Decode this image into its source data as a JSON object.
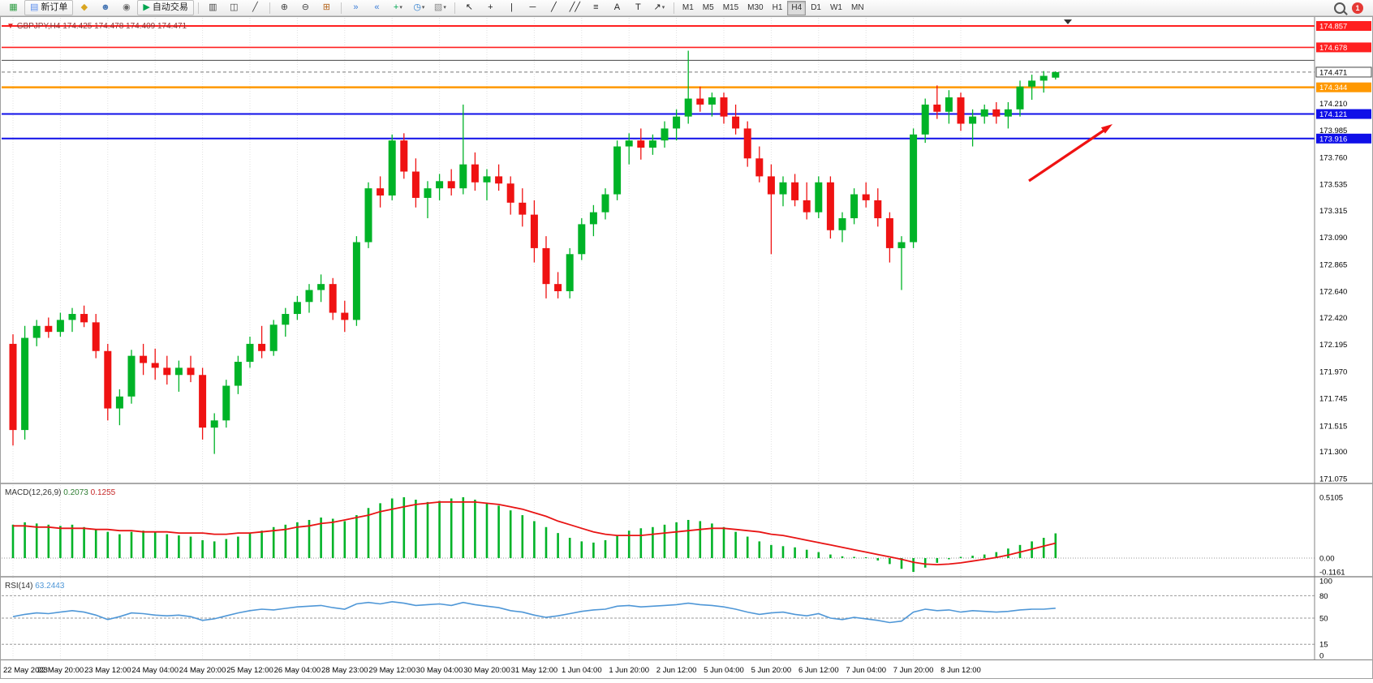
{
  "toolbar": {
    "notification_count": "1",
    "items": [
      {
        "type": "icon",
        "name": "new-chart-icon",
        "glyph": "▦",
        "color": "#2f9e44"
      },
      {
        "type": "button",
        "name": "new-order-button",
        "glyph": "▤",
        "color": "#5b8def",
        "label": "新订单"
      },
      {
        "type": "icon",
        "name": "styler-icon",
        "glyph": "◆",
        "color": "#d9a520"
      },
      {
        "type": "icon",
        "name": "profile-icon",
        "glyph": "☻",
        "color": "#4a78b5"
      },
      {
        "type": "icon",
        "name": "market-icon",
        "glyph": "◉",
        "color": "#6a6a6a"
      },
      {
        "type": "button",
        "name": "auto-trading-button",
        "glyph": "▶",
        "color": "#00a650",
        "label": "自动交易"
      },
      {
        "type": "sep"
      },
      {
        "type": "icon",
        "name": "bar-chart-icon",
        "glyph": "▥",
        "color": "#444444"
      },
      {
        "type": "icon",
        "name": "candlestick-chart-icon",
        "glyph": "◫",
        "color": "#444444"
      },
      {
        "type": "icon",
        "name": "line-chart-icon",
        "glyph": "╱",
        "color": "#444444"
      },
      {
        "type": "sep"
      },
      {
        "type": "icon",
        "name": "zoom-in-icon",
        "glyph": "⊕",
        "color": "#444444"
      },
      {
        "type": "icon",
        "name": "zoom-out-icon",
        "glyph": "⊖",
        "color": "#444444"
      },
      {
        "type": "icon",
        "name": "tile-windows-icon",
        "glyph": "⊞",
        "color": "#b5651d"
      },
      {
        "type": "sep"
      },
      {
        "type": "icon",
        "name": "auto-scroll-icon",
        "glyph": "»",
        "color": "#3b7dd8"
      },
      {
        "type": "icon",
        "name": "chart-shift-icon",
        "glyph": "«",
        "color": "#3b7dd8"
      },
      {
        "type": "icon",
        "name": "indicators-icon",
        "glyph": "+",
        "color": "#00a650",
        "dropdown": true
      },
      {
        "type": "icon",
        "name": "periods-icon",
        "glyph": "◷",
        "color": "#2277cc",
        "dropdown": true
      },
      {
        "type": "icon",
        "name": "templates-icon",
        "glyph": "▧",
        "color": "#888888",
        "dropdown": true
      },
      {
        "type": "sep"
      },
      {
        "type": "icon",
        "name": "cursor-icon",
        "glyph": "↖",
        "color": "#222222"
      },
      {
        "type": "icon",
        "name": "crosshair-icon",
        "glyph": "+",
        "color": "#222222"
      },
      {
        "type": "icon",
        "name": "vertical-line-icon",
        "glyph": "|",
        "color": "#222222"
      },
      {
        "type": "icon",
        "name": "horizontal-line-icon",
        "glyph": "─",
        "color": "#222222"
      },
      {
        "type": "icon",
        "name": "trendline-icon",
        "glyph": "╱",
        "color": "#222222"
      },
      {
        "type": "icon",
        "name": "channel-icon",
        "glyph": "╱╱",
        "color": "#222222"
      },
      {
        "type": "icon",
        "name": "fibonacci-icon",
        "glyph": "≡",
        "color": "#222222"
      },
      {
        "type": "icon",
        "name": "text-icon",
        "glyph": "A",
        "color": "#222222"
      },
      {
        "type": "icon",
        "name": "text-label-icon",
        "glyph": "T",
        "color": "#222222"
      },
      {
        "type": "icon",
        "name": "arrows-icon",
        "glyph": "↗",
        "color": "#222222",
        "dropdown": true
      },
      {
        "type": "sep"
      },
      {
        "type": "timeframes"
      }
    ],
    "timeframes": {
      "items": [
        "M1",
        "M5",
        "M15",
        "M30",
        "H1",
        "H4",
        "D1",
        "W1",
        "MN"
      ],
      "active": "H4"
    }
  },
  "chart": {
    "symbol": "GBPJPY,H4",
    "ohlc_text": "174.425 174.478 174.409 174.471",
    "indicator_labels": {
      "macd_name": "MACD(12,26,9)",
      "macd_main": "0.2073",
      "macd_signal": "0.1255",
      "rsi_name": "RSI(14)",
      "rsi_value": "63.2443"
    },
    "colors": {
      "bull": "#00b327",
      "bear": "#ef1212",
      "macd_hist": "#00b327",
      "macd_signal": "#e81414",
      "rsi_line": "#4f97d7",
      "grid": "#e2e2e2",
      "symbol_text": "#8b3232"
    }
  },
  "chart_data": [
    {
      "type": "candlestick",
      "title": "GBPJPY,H4",
      "ohlc_display": {
        "open": 174.425,
        "high": 174.478,
        "low": 174.409,
        "close": 174.471
      },
      "ylim": [
        171.05,
        174.93
      ],
      "y_ticks": [
        "174.210",
        "173.985",
        "173.760",
        "173.535",
        "173.315",
        "173.090",
        "172.865",
        "172.640",
        "172.420",
        "172.195",
        "171.970",
        "171.745",
        "171.515",
        "171.300",
        "171.075"
      ],
      "x_ticks": [
        "22 May 2023",
        "22 May 20:00",
        "23 May 12:00",
        "24 May 04:00",
        "24 May 20:00",
        "25 May 12:00",
        "26 May 04:00",
        "28 May 23:00",
        "29 May 12:00",
        "30 May 04:00",
        "30 May 20:00",
        "31 May 12:00",
        "1 Jun 04:00",
        "1 Jun 20:00",
        "2 Jun 12:00",
        "5 Jun 04:00",
        "5 Jun 20:00",
        "6 Jun 12:00",
        "7 Jun 04:00",
        "7 Jun 20:00",
        "8 Jun 12:00"
      ],
      "candles": [
        [
          172.2,
          172.28,
          171.35,
          171.48
        ],
        [
          171.48,
          172.35,
          171.4,
          172.25
        ],
        [
          172.25,
          172.4,
          172.18,
          172.35
        ],
        [
          172.35,
          172.42,
          172.25,
          172.3
        ],
        [
          172.3,
          172.46,
          172.26,
          172.4
        ],
        [
          172.4,
          172.5,
          172.3,
          172.45
        ],
        [
          172.45,
          172.52,
          172.34,
          172.38
        ],
        [
          172.38,
          172.45,
          172.08,
          172.14
        ],
        [
          172.14,
          172.2,
          171.56,
          171.66
        ],
        [
          171.66,
          171.82,
          171.52,
          171.76
        ],
        [
          171.76,
          172.15,
          171.7,
          172.1
        ],
        [
          172.1,
          172.2,
          171.94,
          172.04
        ],
        [
          172.04,
          172.16,
          171.9,
          172.0
        ],
        [
          172.0,
          172.1,
          171.86,
          171.94
        ],
        [
          171.94,
          172.06,
          171.8,
          172.0
        ],
        [
          172.0,
          172.1,
          171.88,
          171.94
        ],
        [
          171.94,
          172.0,
          171.4,
          171.5
        ],
        [
          171.5,
          171.62,
          171.28,
          171.56
        ],
        [
          171.56,
          171.9,
          171.5,
          171.85
        ],
        [
          171.85,
          172.1,
          171.78,
          172.05
        ],
        [
          172.05,
          172.26,
          172.0,
          172.2
        ],
        [
          172.2,
          172.35,
          172.08,
          172.14
        ],
        [
          172.14,
          172.4,
          172.1,
          172.36
        ],
        [
          172.36,
          172.5,
          172.26,
          172.45
        ],
        [
          172.45,
          172.6,
          172.4,
          172.55
        ],
        [
          172.55,
          172.7,
          172.46,
          172.65
        ],
        [
          172.65,
          172.78,
          172.55,
          172.7
        ],
        [
          172.7,
          172.75,
          172.4,
          172.46
        ],
        [
          172.46,
          172.56,
          172.3,
          172.4
        ],
        [
          172.4,
          173.1,
          172.35,
          173.05
        ],
        [
          173.05,
          173.55,
          173.0,
          173.5
        ],
        [
          173.5,
          173.6,
          173.34,
          173.44
        ],
        [
          173.44,
          173.95,
          173.4,
          173.9
        ],
        [
          173.9,
          173.96,
          173.58,
          173.64
        ],
        [
          173.64,
          173.75,
          173.34,
          173.42
        ],
        [
          173.42,
          173.56,
          173.25,
          173.5
        ],
        [
          173.5,
          173.62,
          173.4,
          173.56
        ],
        [
          173.56,
          173.66,
          173.44,
          173.5
        ],
        [
          173.5,
          174.2,
          173.45,
          173.7
        ],
        [
          173.7,
          173.8,
          173.48,
          173.55
        ],
        [
          173.55,
          173.66,
          173.4,
          173.6
        ],
        [
          173.6,
          173.7,
          173.48,
          173.54
        ],
        [
          173.54,
          173.6,
          173.28,
          173.38
        ],
        [
          173.38,
          173.5,
          173.18,
          173.28
        ],
        [
          173.28,
          173.4,
          172.88,
          173.0
        ],
        [
          173.0,
          173.1,
          172.58,
          172.7
        ],
        [
          172.7,
          172.8,
          172.58,
          172.64
        ],
        [
          172.64,
          173.0,
          172.58,
          172.95
        ],
        [
          172.95,
          173.25,
          172.9,
          173.2
        ],
        [
          173.2,
          173.36,
          173.1,
          173.3
        ],
        [
          173.3,
          173.5,
          173.24,
          173.45
        ],
        [
          173.45,
          173.9,
          173.4,
          173.85
        ],
        [
          173.85,
          173.96,
          173.7,
          173.9
        ],
        [
          173.9,
          174.0,
          173.74,
          173.84
        ],
        [
          173.84,
          173.95,
          173.78,
          173.9
        ],
        [
          173.9,
          174.06,
          173.84,
          174.0
        ],
        [
          174.0,
          174.16,
          173.9,
          174.1
        ],
        [
          174.1,
          174.65,
          174.04,
          174.25
        ],
        [
          174.25,
          174.35,
          174.14,
          174.2
        ],
        [
          174.2,
          174.3,
          174.1,
          174.26
        ],
        [
          174.26,
          174.3,
          174.04,
          174.1
        ],
        [
          174.1,
          174.2,
          173.95,
          174.0
        ],
        [
          174.0,
          174.06,
          173.68,
          173.75
        ],
        [
          173.75,
          173.85,
          173.55,
          173.6
        ],
        [
          173.6,
          173.7,
          172.95,
          173.45
        ],
        [
          173.45,
          173.6,
          173.35,
          173.55
        ],
        [
          173.55,
          173.62,
          173.35,
          173.4
        ],
        [
          173.4,
          173.55,
          173.24,
          173.3
        ],
        [
          173.3,
          173.6,
          173.25,
          173.55
        ],
        [
          173.55,
          173.6,
          173.08,
          173.15
        ],
        [
          173.15,
          173.3,
          173.05,
          173.25
        ],
        [
          173.25,
          173.5,
          173.2,
          173.45
        ],
        [
          173.45,
          173.55,
          173.34,
          173.4
        ],
        [
          173.4,
          173.5,
          173.18,
          173.25
        ],
        [
          173.25,
          173.3,
          172.88,
          173.0
        ],
        [
          173.0,
          173.1,
          172.65,
          173.05
        ],
        [
          173.05,
          174.0,
          173.0,
          173.95
        ],
        [
          173.95,
          174.25,
          173.88,
          174.2
        ],
        [
          174.2,
          174.36,
          174.08,
          174.14
        ],
        [
          174.14,
          174.32,
          174.04,
          174.26
        ],
        [
          174.26,
          174.3,
          173.98,
          174.04
        ],
        [
          174.04,
          174.16,
          173.85,
          174.1
        ],
        [
          174.1,
          174.2,
          174.04,
          174.16
        ],
        [
          174.16,
          174.22,
          174.04,
          174.1
        ],
        [
          174.1,
          174.22,
          174.0,
          174.16
        ],
        [
          174.16,
          174.4,
          174.1,
          174.35
        ],
        [
          174.35,
          174.45,
          174.24,
          174.4
        ],
        [
          174.4,
          174.48,
          174.3,
          174.44
        ],
        [
          174.425,
          174.478,
          174.409,
          174.471
        ]
      ],
      "horizontal_lines": [
        {
          "name": "red-hline-1",
          "price": 174.857,
          "label": "174.857",
          "color": "#ff2020",
          "width": 2,
          "style": "solid"
        },
        {
          "name": "red-hline-2",
          "price": 174.678,
          "label": "174.678",
          "color": "#ff2020",
          "width": 1.6,
          "style": "solid"
        },
        {
          "name": "black-hline",
          "price": 174.57,
          "label": "",
          "color": "#444444",
          "width": 1,
          "style": "solid"
        },
        {
          "name": "orange-hline",
          "price": 174.344,
          "label": "174.344",
          "color": "#ff9800",
          "width": 2.5,
          "style": "solid"
        },
        {
          "name": "blue-hline-1",
          "price": 174.121,
          "label": "174.121",
          "color": "#0f0fe8",
          "width": 2,
          "style": "solid"
        },
        {
          "name": "blue-hline-2",
          "price": 173.916,
          "label": "173.916",
          "color": "#0f0fe8",
          "width": 2,
          "style": "solid"
        }
      ],
      "current_price": {
        "value": 174.471,
        "label": "174.471"
      },
      "annotations": [
        {
          "type": "arrow",
          "color": "#ef1212",
          "note": "red up-right arrow pointing toward the 174.121 level right of the last candles"
        }
      ]
    },
    {
      "type": "bar",
      "name": "MACD(12,26,9)",
      "y_ticks": [
        "0.5105",
        "0.00",
        "-0.1161"
      ],
      "values": [
        0.28,
        0.3,
        0.29,
        0.28,
        0.27,
        0.28,
        0.26,
        0.24,
        0.22,
        0.2,
        0.22,
        0.23,
        0.22,
        0.2,
        0.19,
        0.18,
        0.15,
        0.14,
        0.16,
        0.18,
        0.21,
        0.23,
        0.26,
        0.28,
        0.3,
        0.32,
        0.34,
        0.33,
        0.31,
        0.36,
        0.42,
        0.46,
        0.5,
        0.51,
        0.49,
        0.47,
        0.48,
        0.5,
        0.51,
        0.49,
        0.46,
        0.44,
        0.4,
        0.36,
        0.31,
        0.26,
        0.21,
        0.17,
        0.14,
        0.13,
        0.15,
        0.19,
        0.23,
        0.25,
        0.26,
        0.28,
        0.3,
        0.32,
        0.31,
        0.29,
        0.26,
        0.22,
        0.18,
        0.14,
        0.11,
        0.1,
        0.09,
        0.07,
        0.05,
        0.03,
        0.015,
        0.01,
        0.0,
        -0.02,
        -0.05,
        -0.09,
        -0.1161,
        -0.08,
        -0.04,
        -0.01,
        0.01,
        0.02,
        0.03,
        0.05,
        0.08,
        0.11,
        0.14,
        0.17,
        0.2073
      ],
      "signal": [
        0.27,
        0.27,
        0.26,
        0.26,
        0.25,
        0.25,
        0.25,
        0.24,
        0.24,
        0.23,
        0.23,
        0.22,
        0.22,
        0.22,
        0.21,
        0.21,
        0.21,
        0.2,
        0.2,
        0.21,
        0.21,
        0.22,
        0.23,
        0.24,
        0.26,
        0.27,
        0.29,
        0.3,
        0.32,
        0.34,
        0.36,
        0.39,
        0.41,
        0.43,
        0.45,
        0.46,
        0.47,
        0.47,
        0.47,
        0.47,
        0.46,
        0.45,
        0.43,
        0.41,
        0.38,
        0.35,
        0.31,
        0.28,
        0.25,
        0.22,
        0.2,
        0.19,
        0.19,
        0.19,
        0.2,
        0.21,
        0.22,
        0.23,
        0.24,
        0.25,
        0.25,
        0.24,
        0.23,
        0.22,
        0.2,
        0.19,
        0.17,
        0.15,
        0.13,
        0.11,
        0.09,
        0.07,
        0.05,
        0.03,
        0.01,
        -0.01,
        -0.035,
        -0.05,
        -0.055,
        -0.05,
        -0.04,
        -0.025,
        -0.01,
        0.005,
        0.025,
        0.05,
        0.075,
        0.1,
        0.1255
      ],
      "hist_color": "#00b327",
      "signal_color": "#e81414"
    },
    {
      "type": "line",
      "name": "RSI(14)",
      "current": 63.2443,
      "ylim": [
        0,
        100
      ],
      "levels": [
        100,
        80,
        50,
        15,
        0
      ],
      "dashed_levels": [
        80,
        50,
        15
      ],
      "values": [
        52,
        55,
        57,
        56,
        58,
        60,
        58,
        54,
        48,
        52,
        57,
        56,
        54,
        53,
        54,
        52,
        47,
        49,
        53,
        57,
        60,
        62,
        61,
        63,
        65,
        66,
        67,
        64,
        62,
        69,
        71,
        69,
        72,
        70,
        67,
        68,
        69,
        67,
        71,
        68,
        66,
        64,
        60,
        58,
        54,
        51,
        53,
        56,
        59,
        61,
        62,
        66,
        67,
        65,
        66,
        67,
        68,
        70,
        68,
        67,
        65,
        62,
        58,
        55,
        57,
        58,
        55,
        53,
        56,
        50,
        48,
        51,
        49,
        47,
        44,
        46,
        58,
        62,
        60,
        61,
        58,
        60,
        59,
        58,
        59,
        61,
        62,
        62,
        63.24
      ],
      "line_color": "#4f97d7"
    }
  ]
}
